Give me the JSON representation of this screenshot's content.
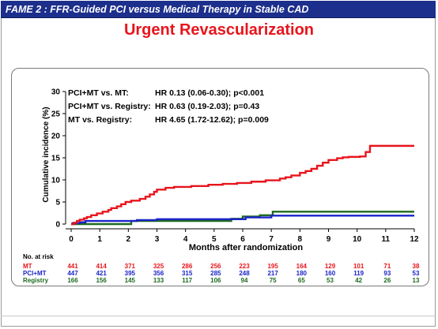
{
  "header": {
    "title": "FAME 2 : FFR-Guided PCI versus Medical Therapy in Stable CAD"
  },
  "slide": {
    "title": "Urgent Revascularization"
  },
  "colors": {
    "header_bg": "#1c2f8c",
    "title": "#e8141c",
    "MT": "#e8141c",
    "PCI+MT": "#1a23c8",
    "Registry": "#1e6a1e"
  },
  "chart_data": {
    "type": "line",
    "step": true,
    "xlabel": "Months after randomization",
    "ylabel": "Cumulative incidence (%)",
    "xlim": [
      0,
      12
    ],
    "ylim": [
      0,
      30
    ],
    "xticks": [
      "0",
      "1",
      "2",
      "3",
      "4",
      "5",
      "6",
      "7",
      "8",
      "9",
      "10",
      "11",
      "12"
    ],
    "yticks": [
      "0",
      "5",
      "10",
      "15",
      "20",
      "25",
      "30"
    ],
    "grid": false,
    "annotations": [
      {
        "label": "PCI+MT vs. MT:",
        "value": "HR 0.13 (0.06-0.30); p<0.001"
      },
      {
        "label": "PCI+MT vs. Registry:",
        "value": "HR 0.63 (0.19-2.03); p=0.43"
      },
      {
        "label": "MT vs. Registry:",
        "value": "HR 4.65 (1.72-12.62); p=0.009"
      }
    ],
    "series": [
      {
        "name": "MT",
        "color": "#e8141c",
        "x": [
          0,
          0.1,
          0.2,
          0.3,
          0.45,
          0.55,
          0.7,
          0.9,
          1.1,
          1.3,
          1.4,
          1.6,
          1.75,
          1.9,
          2.1,
          2.4,
          2.6,
          2.75,
          2.9,
          3.0,
          3.3,
          3.6,
          4.2,
          4.8,
          5.3,
          5.8,
          6.3,
          6.8,
          7.3,
          7.5,
          7.7,
          8.0,
          8.2,
          8.4,
          8.6,
          8.8,
          9.0,
          9.3,
          9.5,
          9.7,
          10.1,
          10.3,
          10.45,
          12.0
        ],
        "y": [
          0,
          0.3,
          0.7,
          1.0,
          1.3,
          1.6,
          2.0,
          2.4,
          2.8,
          3.2,
          3.6,
          4.0,
          4.5,
          5.0,
          5.3,
          5.7,
          6.2,
          6.7,
          7.3,
          7.8,
          8.2,
          8.4,
          8.6,
          8.9,
          9.1,
          9.3,
          9.6,
          9.9,
          10.3,
          10.6,
          11.0,
          11.6,
          12.0,
          12.5,
          13.2,
          13.9,
          14.5,
          14.9,
          15.1,
          15.2,
          15.3,
          16.3,
          17.7,
          17.7
        ]
      },
      {
        "name": "PCI+MT",
        "color": "#1a23c8",
        "x": [
          0,
          0.05,
          0.3,
          0.5,
          2.0,
          2.3,
          3.0,
          5.6,
          6.1,
          7.0,
          12.0
        ],
        "y": [
          0,
          0.2,
          0.4,
          0.7,
          0.7,
          0.9,
          1.1,
          1.1,
          1.5,
          1.9,
          1.9
        ]
      },
      {
        "name": "Registry",
        "color": "#1e6a1e",
        "x": [
          0,
          2.1,
          5.6,
          6.0,
          6.6,
          7.05,
          12.0
        ],
        "y": [
          0,
          0.7,
          1.2,
          1.7,
          2.0,
          2.8,
          2.8
        ]
      }
    ],
    "risk_table": {
      "title": "No. at risk",
      "rows": [
        {
          "name": "MT",
          "color": "#e8141c",
          "values": [
            "441",
            "414",
            "371",
            "325",
            "286",
            "256",
            "223",
            "195",
            "164",
            "129",
            "101",
            "71",
            "38"
          ]
        },
        {
          "name": "PCI+MT",
          "color": "#1a23c8",
          "values": [
            "447",
            "421",
            "395",
            "356",
            "315",
            "285",
            "248",
            "217",
            "180",
            "160",
            "119",
            "93",
            "53"
          ]
        },
        {
          "name": "Registry",
          "color": "#1e6a1e",
          "values": [
            "166",
            "156",
            "145",
            "133",
            "117",
            "106",
            "94",
            "75",
            "65",
            "53",
            "42",
            "26",
            "13"
          ]
        }
      ]
    }
  }
}
